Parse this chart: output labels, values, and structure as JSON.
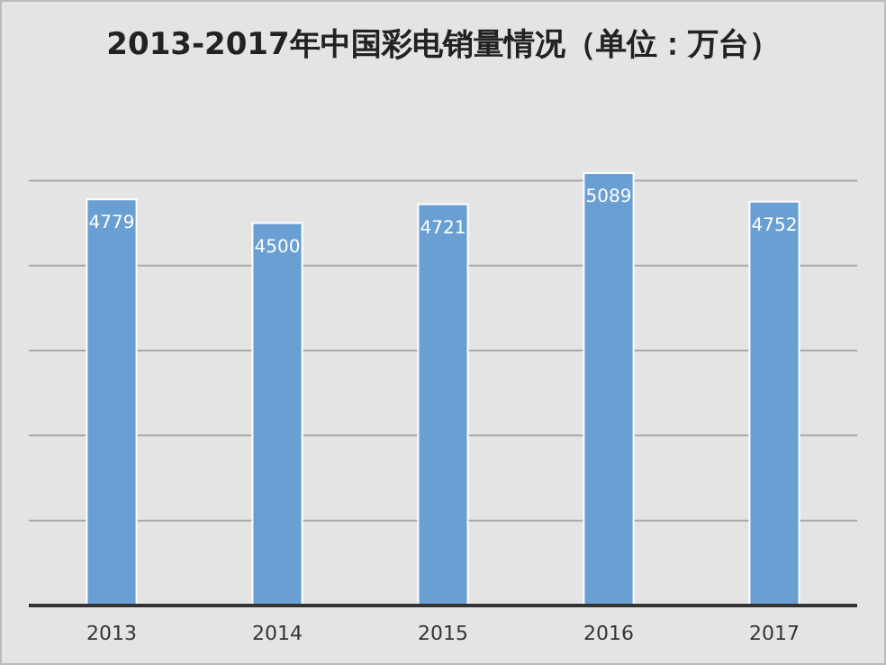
{
  "chart_data": {
    "type": "bar",
    "title": "2013-2017年中国彩电销量情况（单位：万台）",
    "categories": [
      "2013",
      "2014",
      "2015",
      "2016",
      "2017"
    ],
    "values": [
      4779,
      4500,
      4721,
      5089,
      4752
    ],
    "color": "#6a9fd4",
    "yticks": [
      {
        "value": 0,
        "label": null
      },
      {
        "value": 1000,
        "label": null
      },
      {
        "value": 2000,
        "label": null
      },
      {
        "value": 3000,
        "label": null
      },
      {
        "value": 4000,
        "label": null
      },
      {
        "value": 5000,
        "label": null
      }
    ],
    "grid": "y",
    "data_labels": true
  }
}
